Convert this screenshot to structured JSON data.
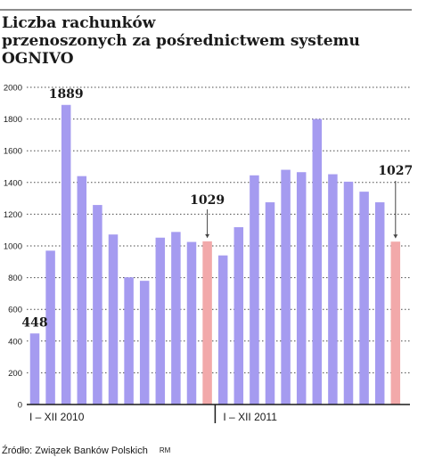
{
  "title_line1": "Liczba rachunków",
  "title_line2": "przenoszonych za pośrednictwem systemu OGNIVO",
  "source": "Źródło: Związek Banków Polskich",
  "credit": "RM",
  "colors": {
    "bar": "#a59bf0",
    "highlight": "#f2a9aa",
    "grid": "#4a4a4a",
    "text": "#1a1a1a"
  },
  "chart_data": {
    "type": "bar",
    "title": "Liczba rachunków przenoszonych za pośrednictwem systemu OGNIVO",
    "xlabel": "",
    "ylabel": "",
    "ylim": [
      0,
      2000
    ],
    "yticks": [
      "0",
      "200",
      "400",
      "600",
      "800",
      "1000",
      "1200",
      "1400",
      "1600",
      "1800",
      "2000"
    ],
    "grid": true,
    "period_labels": [
      "I – XII 2010",
      "I – XII 2011"
    ],
    "values": [
      448,
      970,
      1889,
      1440,
      1258,
      1072,
      802,
      780,
      1052,
      1088,
      1025,
      1029,
      940,
      1118,
      1445,
      1275,
      1480,
      1465,
      1800,
      1452,
      1405,
      1342,
      1275,
      1027
    ],
    "highlighted_index": [
      11,
      23
    ],
    "data_labels": [
      {
        "index": 0,
        "text": "448"
      },
      {
        "index": 2,
        "text": "1889"
      },
      {
        "index": 11,
        "text": "1029"
      },
      {
        "index": 23,
        "text": "1027"
      }
    ]
  }
}
